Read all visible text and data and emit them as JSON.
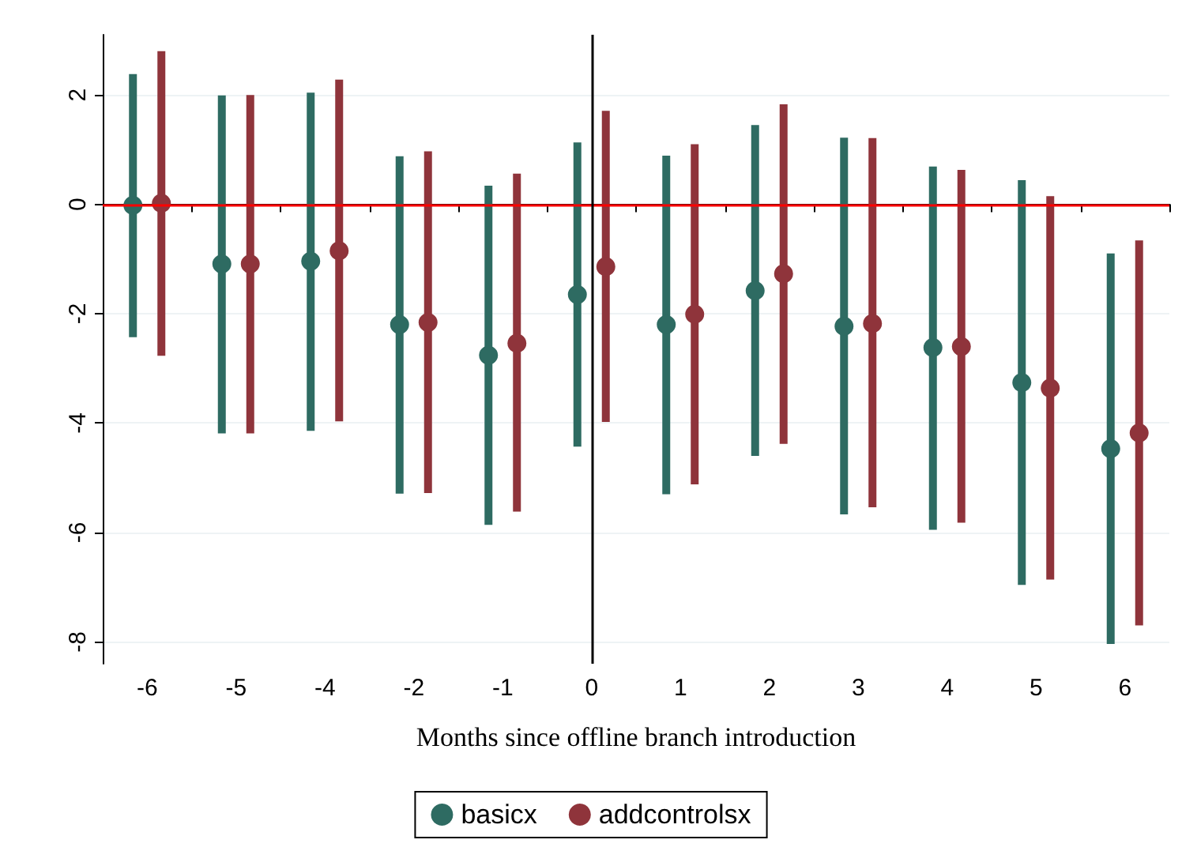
{
  "chart_data": {
    "type": "scatter",
    "xlabel": "Months since offline branch introduction",
    "categories": [
      "-6",
      "-5",
      "-4",
      "-2",
      "-1",
      "0",
      "1",
      "2",
      "3",
      "4",
      "5",
      "6"
    ],
    "series": [
      {
        "name": "basicx",
        "color": "#2e6b62",
        "values": [
          -0.02,
          -1.09,
          -1.04,
          -2.2,
          -2.76,
          -1.65,
          -2.2,
          -1.58,
          -2.23,
          -2.62,
          -3.26,
          -4.47
        ],
        "errors": [
          [
            -2.43,
            2.38
          ],
          [
            -4.19,
            1.99
          ],
          [
            -4.14,
            2.04
          ],
          [
            -5.29,
            0.88
          ],
          [
            -5.86,
            0.34
          ],
          [
            -4.43,
            1.13
          ],
          [
            -5.3,
            0.89
          ],
          [
            -4.6,
            1.45
          ],
          [
            -5.67,
            1.22
          ],
          [
            -5.95,
            0.69
          ],
          [
            -6.96,
            0.44
          ],
          [
            -8.04,
            -0.9
          ]
        ]
      },
      {
        "name": "addcontrolsx",
        "color": "#8f343b",
        "values": [
          0.02,
          -1.09,
          -0.85,
          -2.16,
          -2.54,
          -1.14,
          -2.01,
          -1.27,
          -2.18,
          -2.6,
          -3.36,
          -4.18
        ],
        "errors": [
          [
            -2.77,
            2.8
          ],
          [
            -4.19,
            2.0
          ],
          [
            -3.97,
            2.28
          ],
          [
            -5.28,
            0.97
          ],
          [
            -5.62,
            0.56
          ],
          [
            -3.98,
            1.71
          ],
          [
            -5.12,
            1.1
          ],
          [
            -4.38,
            1.83
          ],
          [
            -5.54,
            1.21
          ],
          [
            -5.82,
            0.63
          ],
          [
            -6.86,
            0.15
          ],
          [
            -7.7,
            -0.66
          ]
        ]
      }
    ],
    "ylim": [
      -8.4,
      3.1
    ],
    "yticks": [
      -8,
      -6,
      -4,
      -2,
      0,
      2
    ],
    "grid": "y",
    "legend": "bottom",
    "marker": "circle",
    "ref_lines": [
      {
        "axis": "y",
        "value": 0,
        "color": "#ff0000"
      },
      {
        "axis": "x",
        "value": "0",
        "color": "#000000"
      }
    ]
  }
}
